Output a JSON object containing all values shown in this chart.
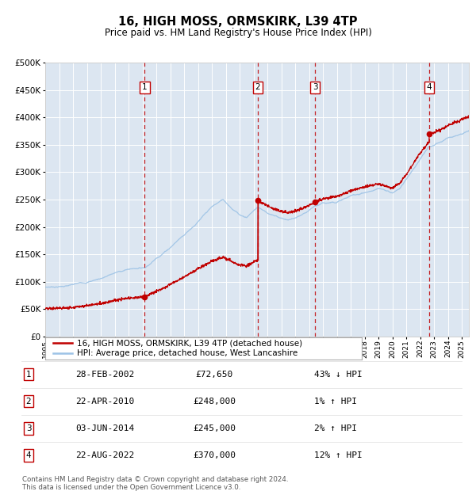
{
  "title": "16, HIGH MOSS, ORMSKIRK, L39 4TP",
  "subtitle": "Price paid vs. HM Land Registry's House Price Index (HPI)",
  "legend_label_red": "16, HIGH MOSS, ORMSKIRK, L39 4TP (detached house)",
  "legend_label_blue": "HPI: Average price, detached house, West Lancashire",
  "footer_line1": "Contains HM Land Registry data © Crown copyright and database right 2024.",
  "footer_line2": "This data is licensed under the Open Government Licence v3.0.",
  "transactions": [
    {
      "num": 1,
      "date": "28-FEB-2002",
      "price": "£72,650",
      "pct": "43% ↓ HPI",
      "year_x": 2002.16
    },
    {
      "num": 2,
      "date": "22-APR-2010",
      "price": "£248,000",
      "pct": "1% ↑ HPI",
      "year_x": 2010.31
    },
    {
      "num": 3,
      "date": "03-JUN-2014",
      "price": "£245,000",
      "pct": "2% ↑ HPI",
      "year_x": 2014.42
    },
    {
      "num": 4,
      "date": "22-AUG-2022",
      "price": "£370,000",
      "pct": "12% ↑ HPI",
      "year_x": 2022.64
    }
  ],
  "transaction_prices": [
    72650,
    248000,
    245000,
    370000
  ],
  "ylim": [
    0,
    500000
  ],
  "yticks": [
    0,
    50000,
    100000,
    150000,
    200000,
    250000,
    300000,
    350000,
    400000,
    450000,
    500000
  ],
  "xlim_start": 1995.0,
  "xlim_end": 2025.5,
  "bg_color": "#dce6f1",
  "grid_color": "#ffffff",
  "red_line_color": "#c00000",
  "blue_line_color": "#9dc3e6",
  "dashed_line_color": "#c00000",
  "dot_color": "#c00000",
  "box_edge_color": "#c00000"
}
